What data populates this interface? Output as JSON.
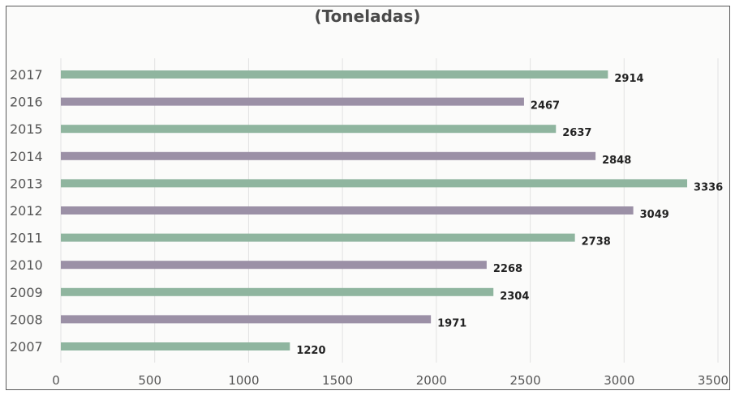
{
  "chart_data": {
    "type": "bar",
    "orientation": "horizontal",
    "title": "(Toneladas)",
    "categories": [
      "2017",
      "2016",
      "2015",
      "2014",
      "2013",
      "2012",
      "2011",
      "2010",
      "2009",
      "2008",
      "2007"
    ],
    "values": [
      2914,
      2467,
      2637,
      2848,
      3336,
      3049,
      2738,
      2268,
      2304,
      1971,
      1220
    ],
    "xlim": [
      0,
      3500
    ],
    "xticks": [
      "0",
      "500",
      "1000",
      "1500",
      "2000",
      "2500",
      "3000",
      "3500"
    ],
    "grid": "vertical",
    "legend": "none",
    "colors": {
      "green": "#8fb59f",
      "mauve": "#9b90a6",
      "text": "#222222",
      "axis_text": "#555555"
    }
  }
}
